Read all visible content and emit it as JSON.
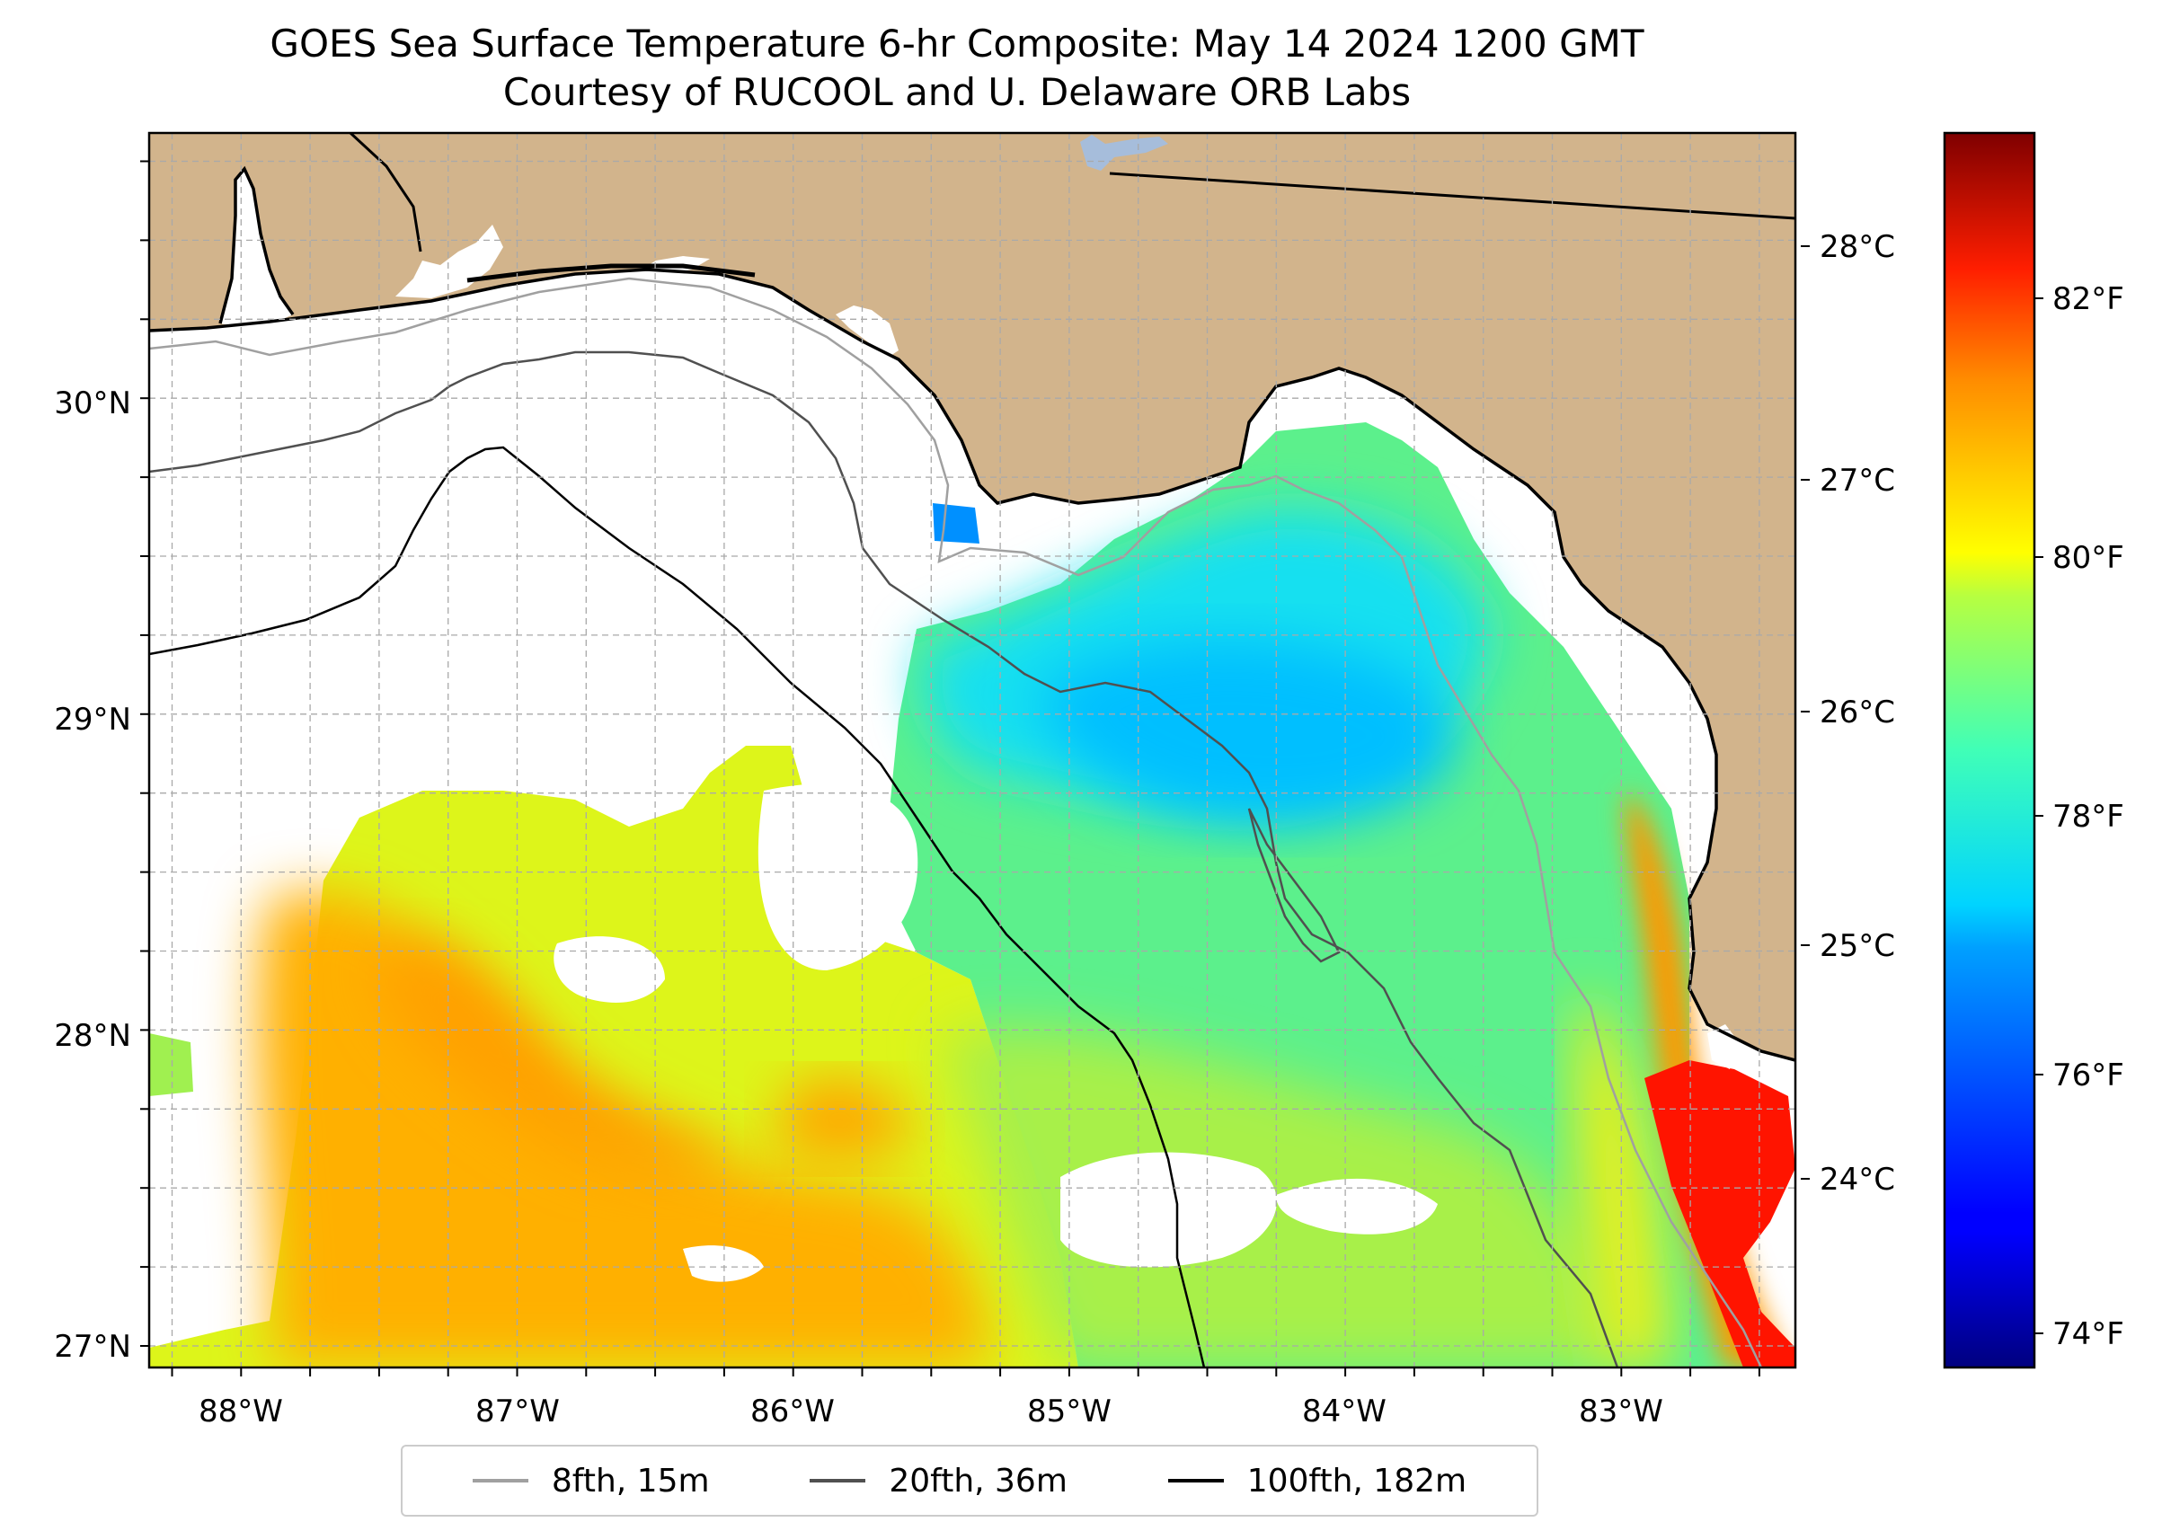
{
  "title": "GOES Sea Surface Temperature 6-hr Composite: May 14 2024 1200 GMT",
  "subtitle": "Courtesy of RUCOOL and U. Delaware ORB Labs",
  "map": {
    "region": "Northeastern Gulf of Mexico / Florida Big Bend",
    "lon_range": [
      -88.3,
      -82.4
    ],
    "lat_range": [
      26.95,
      30.85
    ],
    "lon_ticks": [
      "88°W",
      "87°W",
      "86°W",
      "85°W",
      "84°W",
      "83°W"
    ],
    "lat_ticks": [
      "30°N",
      "29°N",
      "28°N",
      "27°N"
    ],
    "grid": true,
    "colors": {
      "land": "#d2b48c",
      "no_data": "#ffffff",
      "coast": "#000000",
      "lake": "#a6bddb"
    }
  },
  "legend": {
    "placement": "bottom-center",
    "items": [
      {
        "label": "8fth, 15m",
        "color": "#a0a0a0"
      },
      {
        "label": "20fth, 36m",
        "color": "#505050"
      },
      {
        "label": "100fth, 182m",
        "color": "#000000"
      }
    ]
  },
  "colorbar": {
    "colormap": "jet",
    "range_c": [
      23.1,
      28.5
    ],
    "celsius_labels": [
      "28°C",
      "27°C",
      "26°C",
      "25°C",
      "24°C"
    ],
    "fahrenheit_labels": [
      "82°F",
      "80°F",
      "78°F",
      "76°F",
      "74°F"
    ]
  }
}
